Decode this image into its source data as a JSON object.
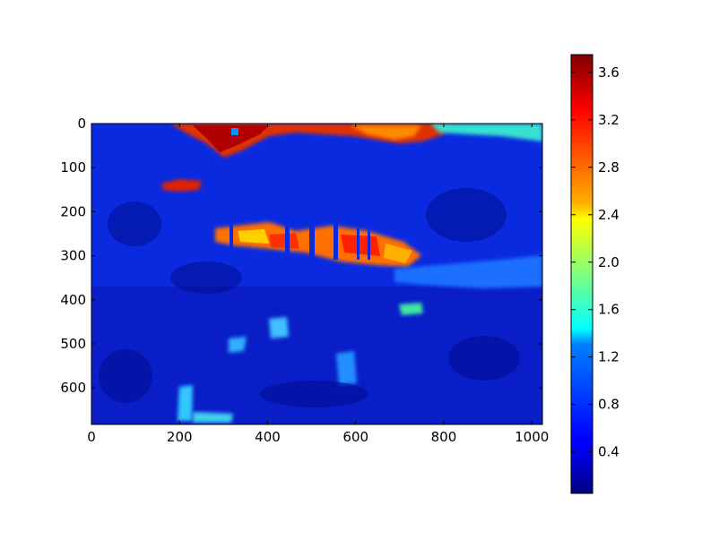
{
  "chart_data": {
    "type": "heatmap",
    "title": "",
    "xlabel": "",
    "ylabel": "",
    "xlim": [
      0,
      1024
    ],
    "ylim": [
      683,
      0
    ],
    "x_ticks": [
      "0",
      "200",
      "400",
      "600",
      "800",
      "1000"
    ],
    "y_ticks": [
      "0",
      "100",
      "200",
      "300",
      "400",
      "500",
      "600"
    ],
    "colormap": "jet",
    "colorbar": {
      "range": [
        0.05,
        3.75
      ],
      "ticks": [
        "0.4",
        "0.8",
        "1.2",
        "1.6",
        "2.0",
        "2.4",
        "2.8",
        "3.2",
        "3.6"
      ]
    },
    "grid": false,
    "image_shape": [
      683,
      1024
    ],
    "description_of_values": "Ratio-like intensity field of a landscape photograph (trees reflected in a pond); most pixels are low (blue, about 0.2-0.8); bright sky gaps and sunlit patches near the top and horizon reach high values (orange-red, about 2.6-3.7)."
  },
  "colors": {
    "jet_dark_blue": "#00007f",
    "jet_blue": "#0000ff",
    "jet_cyan": "#00ffff",
    "jet_yellow": "#ffff00",
    "jet_red": "#ff0000",
    "jet_dark_red": "#7f0000"
  }
}
